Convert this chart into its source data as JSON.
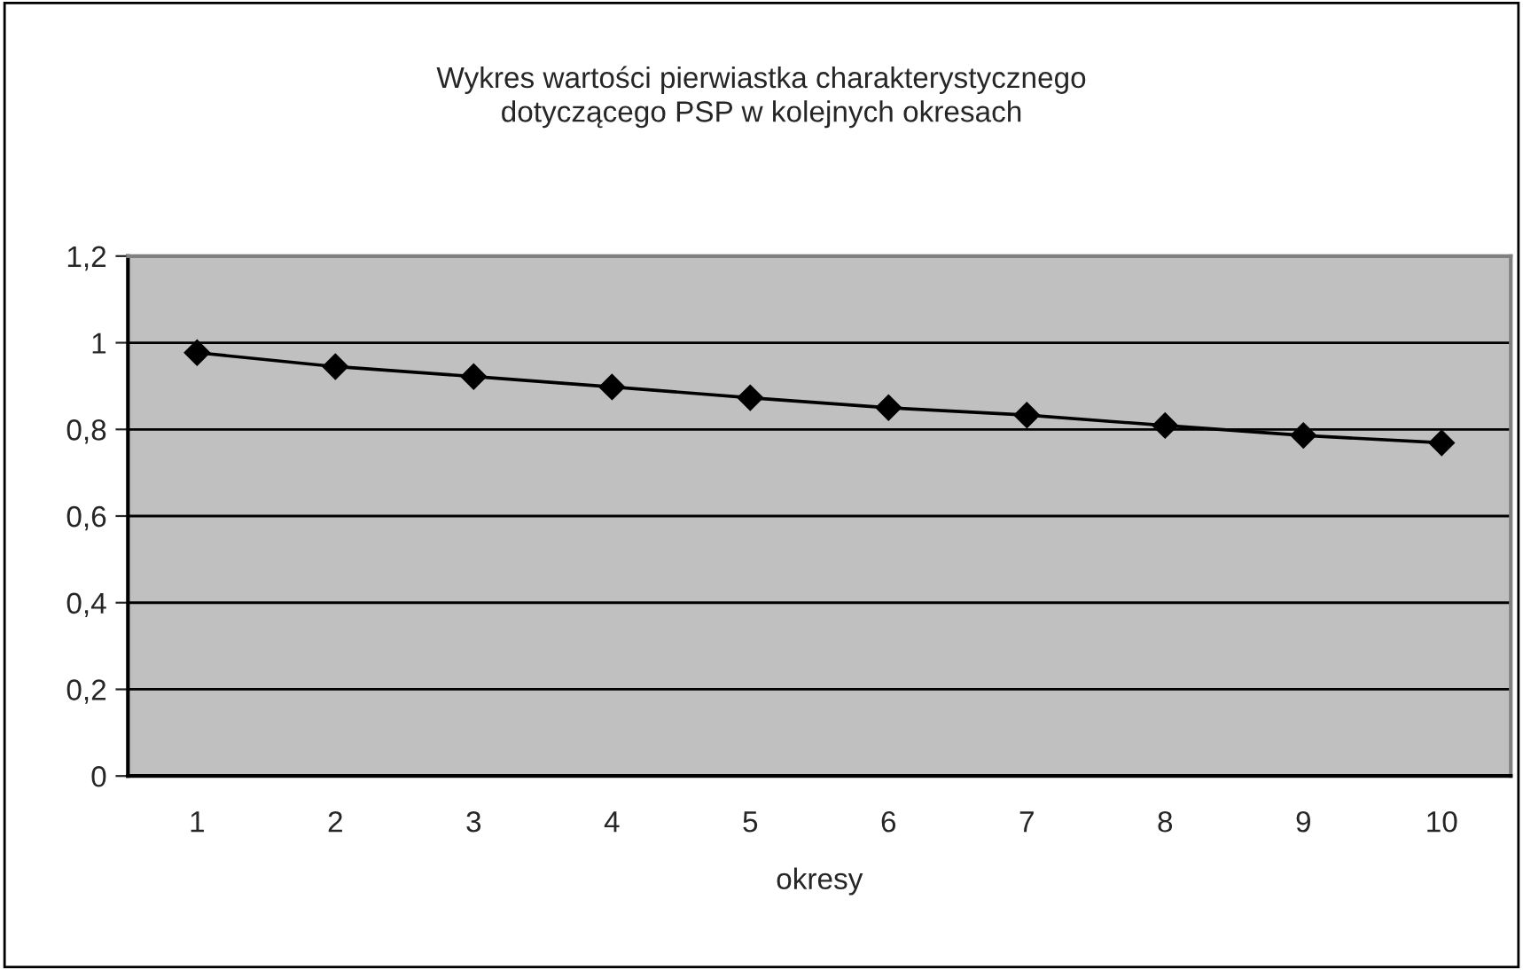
{
  "chart_data": {
    "type": "line",
    "title": "Wykres wartości pierwiastka charakterystycznego\ndotyczącego PSP w kolejnych okresach",
    "xlabel": "okresy",
    "categories": [
      "1",
      "2",
      "3",
      "4",
      "5",
      "6",
      "7",
      "8",
      "9",
      "10"
    ],
    "series": [
      {
        "color": "#000000",
        "values": [
          0.977,
          0.945,
          0.922,
          0.898,
          0.873,
          0.85,
          0.833,
          0.809,
          0.786,
          0.769
        ]
      }
    ],
    "ylim": [
      0,
      1.2
    ],
    "yticks": [
      {
        "value": 0,
        "label": "0"
      },
      {
        "value": 0.2,
        "label": "0,2"
      },
      {
        "value": 0.4,
        "label": "0,4"
      },
      {
        "value": 0.6,
        "label": "0,6"
      },
      {
        "value": 0.8,
        "label": "0,8"
      },
      {
        "value": 1,
        "label": "1"
      },
      {
        "value": 1.2,
        "label": "1,2"
      }
    ],
    "grid": "y",
    "marker": "diamond",
    "line_style": "solid"
  }
}
